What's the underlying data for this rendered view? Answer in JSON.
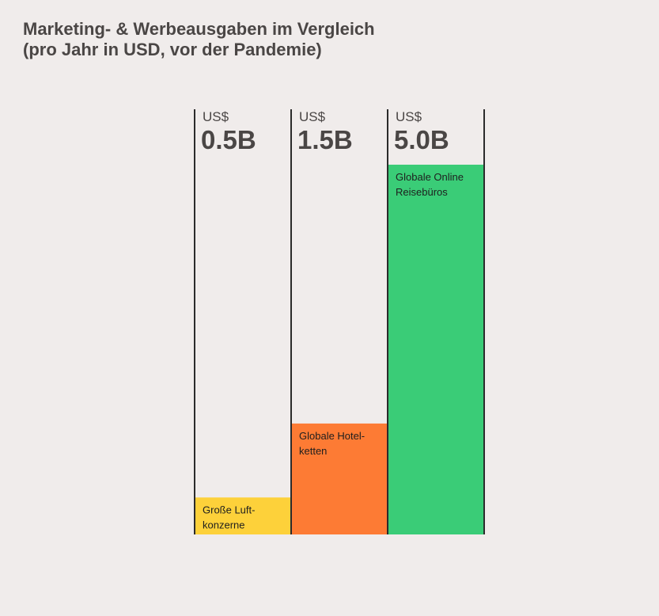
{
  "chart_data": {
    "type": "bar",
    "title": "Marketing- & Werbeausgaben im Vergleich",
    "subtitle": "(pro Jahr in USD, vor der Pandemie)",
    "currency_label": "US$",
    "categories": [
      "Große Luft-konzerne",
      "Globale Hotel-ketten",
      "Globale Online Reisebüros"
    ],
    "category_label_lines": [
      [
        "Große Luft-",
        "konzerne"
      ],
      [
        "Globale Hotel-",
        "ketten"
      ],
      [
        "Globale Online",
        "Reisebüros"
      ]
    ],
    "value_labels": [
      "0.5B",
      "1.5B",
      "5.0B"
    ],
    "values": [
      0.5,
      1.5,
      5.0
    ],
    "unit": "Mrd. USD",
    "ylim": [
      0,
      5.0
    ],
    "colors": [
      "#fdd13a",
      "#fd7b34",
      "#3acc77"
    ],
    "grid": false,
    "legend": "none"
  }
}
